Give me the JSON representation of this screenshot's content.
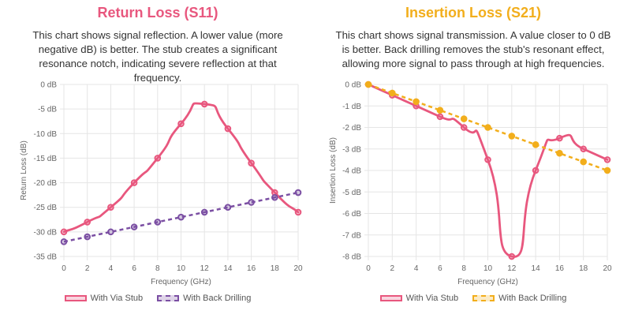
{
  "chart_data": [
    {
      "type": "line",
      "title": "Return Loss (S11)",
      "description": "This chart shows signal reflection. A lower value (more negative dB) is better. The stub creates a significant resonance notch, indicating severe reflection at that frequency.",
      "title_color": "#e8577e",
      "xlabel": "Frequency (GHz)",
      "ylabel": "Return Loss (dB)",
      "xlim": [
        0,
        20
      ],
      "ylim": [
        -35,
        0
      ],
      "x_ticks": [
        0,
        2,
        4,
        6,
        8,
        10,
        12,
        14,
        16,
        18,
        20
      ],
      "y_ticks": [
        0,
        -5,
        -10,
        -15,
        -20,
        -25,
        -30,
        -35
      ],
      "y_tick_labels": [
        "0 dB",
        "-5 dB",
        "-10 dB",
        "-15 dB",
        "-20 dB",
        "-25 dB",
        "-30 dB",
        "-35 dB"
      ],
      "grid": true,
      "legend_position": "bottom",
      "series": [
        {
          "name": "With Via Stub",
          "color": "#e8577e",
          "style": "solid",
          "x": [
            0,
            2,
            4,
            6,
            8,
            10,
            12,
            14,
            16,
            18,
            20
          ],
          "values": [
            -30,
            -28,
            -25,
            -20,
            -15,
            -8,
            -4,
            -9,
            -16,
            -22,
            -26
          ]
        },
        {
          "name": "With Back Drilling",
          "color": "#7b4fa3",
          "style": "dashed",
          "x": [
            0,
            2,
            4,
            6,
            8,
            10,
            12,
            14,
            16,
            18,
            20
          ],
          "values": [
            -32,
            -31,
            -30,
            -29,
            -28,
            -27,
            -26,
            -25,
            -24,
            -23,
            -22
          ]
        }
      ]
    },
    {
      "type": "line",
      "title": "Insertion Loss (S21)",
      "description": "This chart shows signal transmission. A value closer to 0 dB is better. Back drilling removes the stub's resonant effect, allowing more signal to pass through at high frequencies.",
      "title_color": "#f2ae1c",
      "xlabel": "Frequency (GHz)",
      "ylabel": "Insertion Loss (dB)",
      "xlim": [
        0,
        20
      ],
      "ylim": [
        -8,
        0
      ],
      "x_ticks": [
        0,
        2,
        4,
        6,
        8,
        10,
        12,
        14,
        16,
        18,
        20
      ],
      "y_ticks": [
        0,
        -1,
        -2,
        -3,
        -4,
        -5,
        -6,
        -7,
        -8
      ],
      "y_tick_labels": [
        "0 dB",
        "-1 dB",
        "-2 dB",
        "-3 dB",
        "-4 dB",
        "-5 dB",
        "-6 dB",
        "-7 dB",
        "-8 dB"
      ],
      "grid": true,
      "legend_position": "bottom",
      "series": [
        {
          "name": "With Via Stub",
          "color": "#e8577e",
          "style": "solid",
          "x": [
            0,
            2,
            4,
            6,
            8,
            10,
            12,
            14,
            16,
            18,
            20
          ],
          "values": [
            0,
            -0.5,
            -1,
            -1.5,
            -2,
            -3.5,
            -8,
            -4,
            -2.5,
            -3,
            -3.5
          ]
        },
        {
          "name": "With Back Drilling",
          "color": "#f2ae1c",
          "style": "dashed",
          "x": [
            0,
            2,
            4,
            6,
            8,
            10,
            12,
            14,
            16,
            18,
            20
          ],
          "values": [
            0,
            -0.4,
            -0.8,
            -1.2,
            -1.6,
            -2,
            -2.4,
            -2.8,
            -3.2,
            -3.6,
            -4
          ]
        }
      ]
    }
  ]
}
